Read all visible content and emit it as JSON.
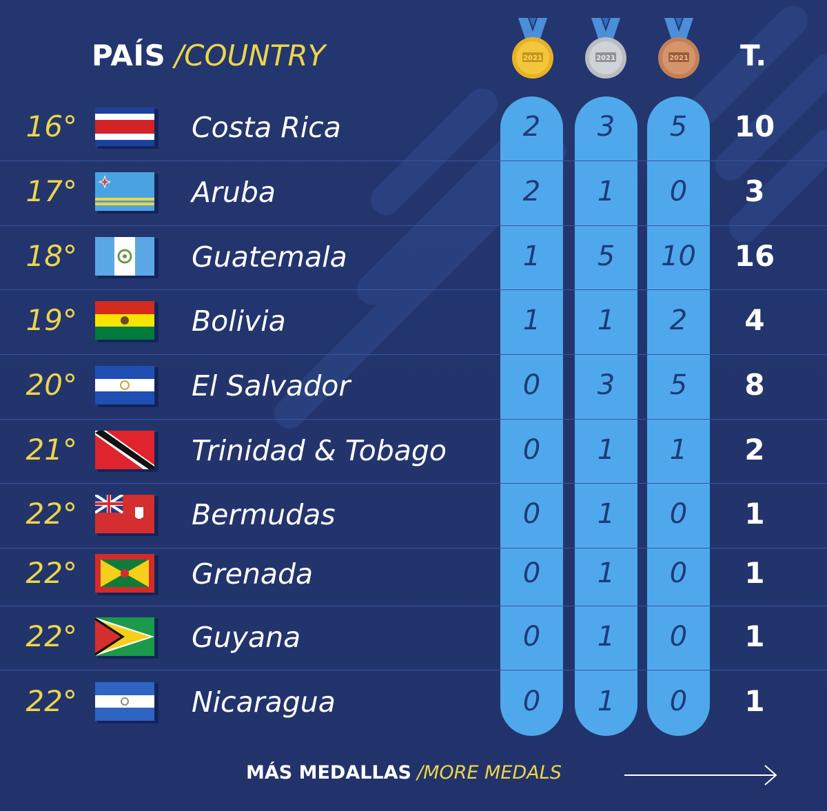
{
  "header": {
    "pais_label": "PAÍS",
    "country_label": "/COUNTRY",
    "total_label": "T."
  },
  "medals": [
    {
      "type": "gold",
      "color": "#e6b325",
      "edition": "2021"
    },
    {
      "type": "silver",
      "color": "#b9bcc2",
      "edition": "2021"
    },
    {
      "type": "bronze",
      "color": "#c47f58",
      "edition": "2021"
    }
  ],
  "rows": [
    {
      "rank": "16°",
      "country": "Costa Rica",
      "flag": "costa-rica-flag",
      "gold": "2",
      "silver": "3",
      "bronze": "5",
      "total": "10"
    },
    {
      "rank": "17°",
      "country": "Aruba",
      "flag": "aruba-flag",
      "gold": "2",
      "silver": "1",
      "bronze": "0",
      "total": "3"
    },
    {
      "rank": "18°",
      "country": "Guatemala",
      "flag": "guatemala-flag",
      "gold": "1",
      "silver": "5",
      "bronze": "10",
      "total": "16"
    },
    {
      "rank": "19°",
      "country": "Bolivia",
      "flag": "bolivia-flag",
      "gold": "1",
      "silver": "1",
      "bronze": "2",
      "total": "4"
    },
    {
      "rank": "20°",
      "country": "El Salvador",
      "flag": "el-salvador-flag",
      "gold": "0",
      "silver": "3",
      "bronze": "5",
      "total": "8"
    },
    {
      "rank": "21°",
      "country": "Trinidad & Tobago",
      "flag": "trinidad-tobago-flag",
      "gold": "0",
      "silver": "1",
      "bronze": "1",
      "total": "2"
    },
    {
      "rank": "22°",
      "country": "Bermudas",
      "flag": "bermuda-flag",
      "gold": "0",
      "silver": "1",
      "bronze": "0",
      "total": "1"
    },
    {
      "rank": "22°",
      "country": "Grenada",
      "flag": "grenada-flag",
      "gold": "0",
      "silver": "1",
      "bronze": "0",
      "total": "1"
    },
    {
      "rank": "22°",
      "country": "Guyana",
      "flag": "guyana-flag",
      "gold": "0",
      "silver": "1",
      "bronze": "0",
      "total": "1"
    },
    {
      "rank": "22°",
      "country": "Nicaragua",
      "flag": "nicaragua-flag",
      "gold": "0",
      "silver": "1",
      "bronze": "0",
      "total": "1"
    }
  ],
  "footer": {
    "more_es": "MÁS MEDALLAS",
    "more_en": "/MORE MEDALS",
    "arrow_icon": "arrow-right-icon"
  },
  "colors": {
    "background": "#23346e",
    "accent_yellow": "#ecd64a",
    "pill_blue": "#4fa8ec",
    "number_dark": "#1e3a7a"
  }
}
